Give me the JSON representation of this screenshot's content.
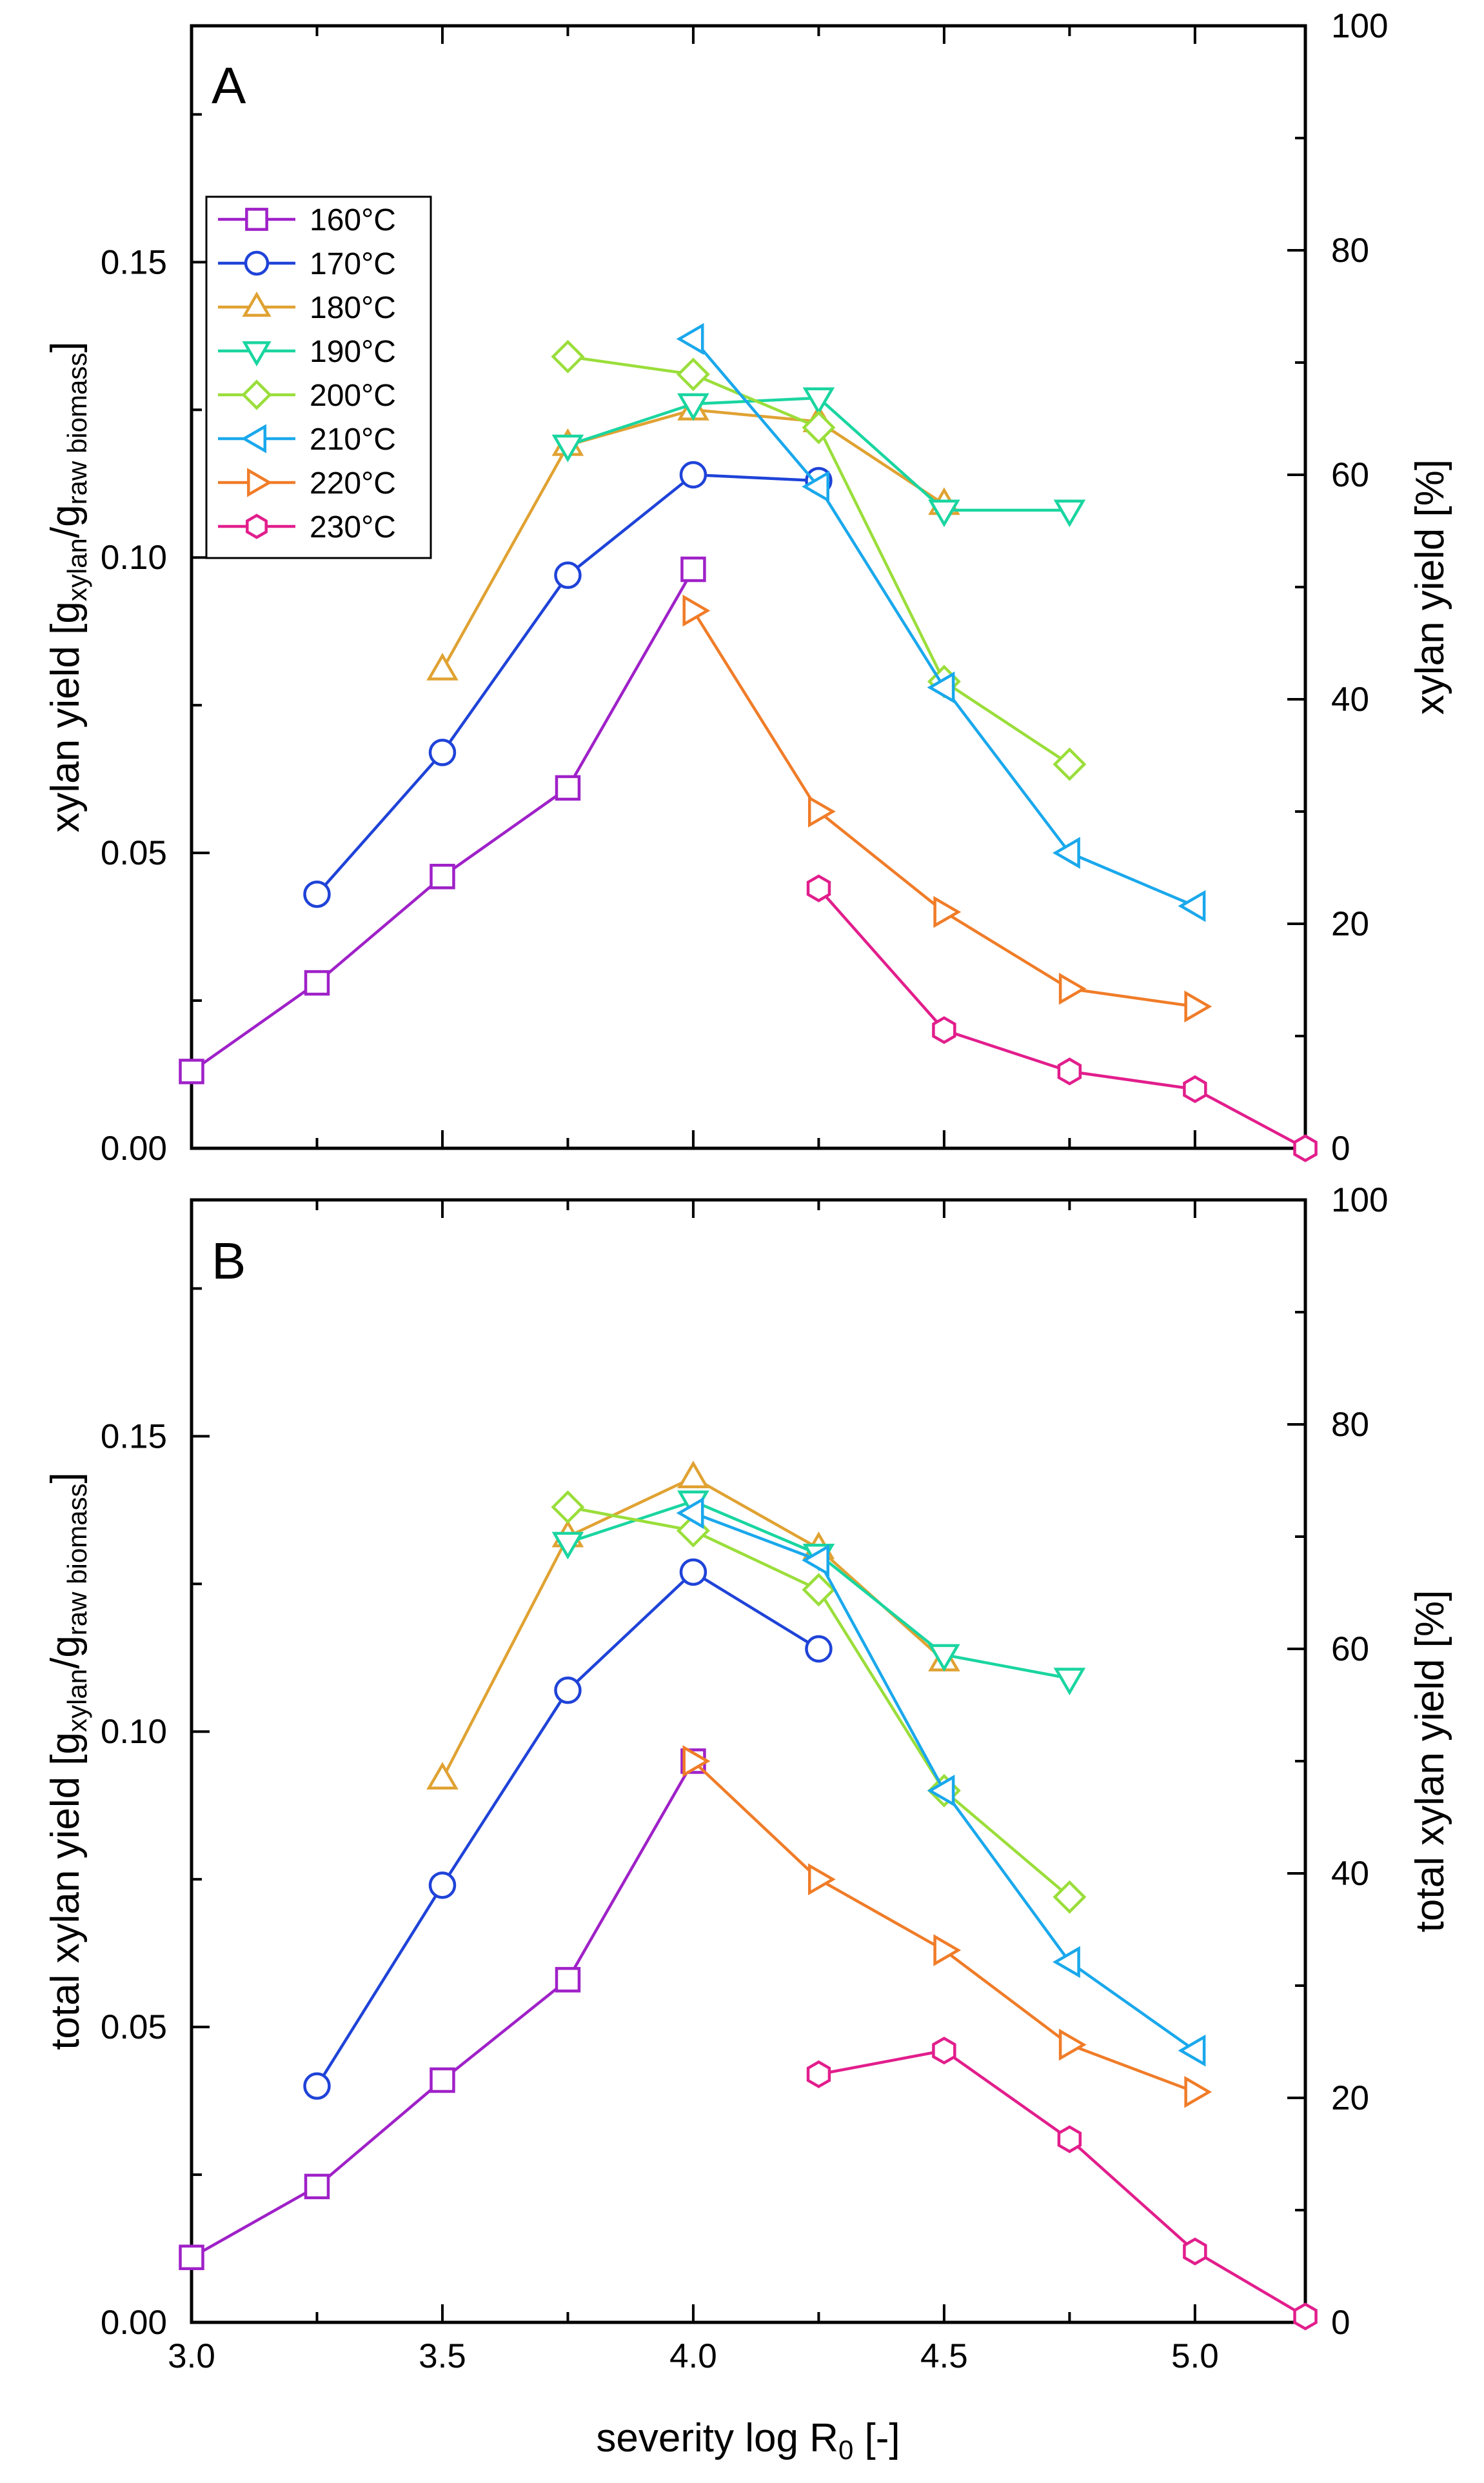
{
  "chart_data": [
    {
      "type": "line",
      "panel_label": "A",
      "ylabel": "xylan yield [g{xylan}/g{raw biomass}]",
      "ylabel_parts": {
        "main": "xylan yield [g",
        "sub1": "xylan",
        "mid": "/g",
        "sub2": "raw biomass",
        "end": "]"
      },
      "y2label": "xylan yield [%]",
      "xlim": [
        3.0,
        5.22
      ],
      "ylim": [
        0.0,
        0.19
      ],
      "y2lim": [
        0,
        100
      ],
      "y_ticks": [
        "0.00",
        "0.05",
        "0.10",
        "0.15"
      ],
      "y2_ticks": [
        "0",
        "20",
        "40",
        "60",
        "80",
        "100"
      ],
      "legend_position": "top-left",
      "series": [
        {
          "name": "160°C",
          "color": "#9f21c8",
          "marker": "square",
          "x": [
            3.0,
            3.25,
            3.5,
            3.75,
            4.0
          ],
          "y": [
            0.013,
            0.028,
            0.046,
            0.061,
            0.098
          ]
        },
        {
          "name": "170°C",
          "color": "#1f43d8",
          "marker": "circle",
          "x": [
            3.25,
            3.5,
            3.75,
            4.0,
            4.25
          ],
          "y": [
            0.043,
            0.067,
            0.097,
            0.114,
            0.113
          ]
        },
        {
          "name": "180°C",
          "color": "#e0a232",
          "marker": "triangle-up",
          "x": [
            3.5,
            3.75,
            4.0,
            4.25,
            4.5
          ],
          "y": [
            0.081,
            0.119,
            0.125,
            0.123,
            0.109
          ]
        },
        {
          "name": "190°C",
          "color": "#1ad5a0",
          "marker": "triangle-down",
          "x": [
            3.75,
            4.0,
            4.25,
            4.5,
            4.75
          ],
          "y": [
            0.119,
            0.126,
            0.127,
            0.108,
            0.108
          ]
        },
        {
          "name": "200°C",
          "color": "#9ade3a",
          "marker": "diamond",
          "x": [
            3.75,
            4.0,
            4.25,
            4.5,
            4.75
          ],
          "y": [
            0.134,
            0.131,
            0.122,
            0.079,
            0.065
          ]
        },
        {
          "name": "210°C",
          "color": "#1aa8ec",
          "marker": "triangle-left",
          "x": [
            4.0,
            4.25,
            4.5,
            4.75,
            5.0
          ],
          "y": [
            0.137,
            0.112,
            0.078,
            0.05,
            0.041
          ]
        },
        {
          "name": "220°C",
          "color": "#f07c28",
          "marker": "triangle-right",
          "x": [
            4.0,
            4.25,
            4.5,
            4.75,
            5.0
          ],
          "y": [
            0.091,
            0.057,
            0.04,
            0.027,
            0.024
          ]
        },
        {
          "name": "230°C",
          "color": "#e21e8c",
          "marker": "hexagon",
          "x": [
            4.25,
            4.5,
            4.75,
            5.0,
            5.22
          ],
          "y": [
            0.044,
            0.02,
            0.013,
            0.01,
            0.0
          ]
        }
      ]
    },
    {
      "type": "line",
      "panel_label": "B",
      "ylabel": "total xylan yield [g{xylan}/g{raw biomass}]",
      "ylabel_parts": {
        "main": "total xylan yield [g",
        "sub1": "xylan",
        "mid": "/g",
        "sub2": "raw biomass",
        "end": "]"
      },
      "y2label": "total xylan yield [%]",
      "xlabel": "severity log R0 [-]",
      "xlabel_parts": {
        "main": "severity log R",
        "sub": "0",
        "end": " [-]"
      },
      "xlim": [
        3.0,
        5.22
      ],
      "ylim": [
        0.0,
        0.19
      ],
      "y2lim": [
        0,
        100
      ],
      "x_ticks": [
        "3.0",
        "3.5",
        "4.0",
        "4.5",
        "5.0"
      ],
      "y_ticks": [
        "0.00",
        "0.05",
        "0.10",
        "0.15"
      ],
      "y2_ticks": [
        "0",
        "20",
        "40",
        "60",
        "80",
        "100"
      ],
      "series": [
        {
          "name": "160°C",
          "color": "#9f21c8",
          "marker": "square",
          "x": [
            3.0,
            3.25,
            3.5,
            3.75,
            4.0
          ],
          "y": [
            0.011,
            0.023,
            0.041,
            0.058,
            0.095
          ]
        },
        {
          "name": "170°C",
          "color": "#1f43d8",
          "marker": "circle",
          "x": [
            3.25,
            3.5,
            3.75,
            4.0,
            4.25
          ],
          "y": [
            0.04,
            0.074,
            0.107,
            0.127,
            0.114
          ]
        },
        {
          "name": "180°C",
          "color": "#e0a232",
          "marker": "triangle-up",
          "x": [
            3.5,
            3.75,
            4.0,
            4.25,
            4.5
          ],
          "y": [
            0.092,
            0.133,
            0.143,
            0.131,
            0.112
          ]
        },
        {
          "name": "190°C",
          "color": "#1ad5a0",
          "marker": "triangle-down",
          "x": [
            3.75,
            4.0,
            4.25,
            4.5,
            4.75
          ],
          "y": [
            0.132,
            0.139,
            0.13,
            0.113,
            0.109
          ]
        },
        {
          "name": "200°C",
          "color": "#9ade3a",
          "marker": "diamond",
          "x": [
            3.75,
            4.0,
            4.25,
            4.5,
            4.75
          ],
          "y": [
            0.138,
            0.134,
            0.124,
            0.09,
            0.072
          ]
        },
        {
          "name": "210°C",
          "color": "#1aa8ec",
          "marker": "triangle-left",
          "x": [
            4.0,
            4.25,
            4.5,
            4.75,
            5.0
          ],
          "y": [
            0.137,
            0.129,
            0.09,
            0.061,
            0.046
          ]
        },
        {
          "name": "220°C",
          "color": "#f07c28",
          "marker": "triangle-right",
          "x": [
            4.0,
            4.25,
            4.5,
            4.75,
            5.0
          ],
          "y": [
            0.095,
            0.075,
            0.063,
            0.047,
            0.039
          ]
        },
        {
          "name": "230°C",
          "color": "#e21e8c",
          "marker": "hexagon",
          "x": [
            4.25,
            4.5,
            4.75,
            5.0,
            5.22
          ],
          "y": [
            0.042,
            0.046,
            0.031,
            0.012,
            0.001
          ]
        }
      ]
    }
  ]
}
